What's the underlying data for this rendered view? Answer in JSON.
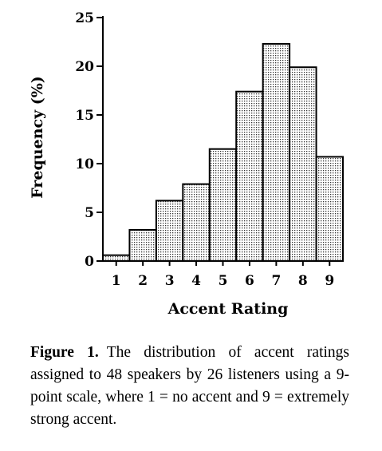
{
  "chart_data": {
    "type": "bar",
    "categories": [
      "1",
      "2",
      "3",
      "4",
      "5",
      "6",
      "7",
      "8",
      "9"
    ],
    "values": [
      0.6,
      3.2,
      6.2,
      7.9,
      11.5,
      17.4,
      22.3,
      19.9,
      10.7
    ],
    "xlabel": "Accent Rating",
    "ylabel": "Frequency (%)",
    "ylim": [
      0,
      25
    ],
    "yticks": [
      0,
      5,
      10,
      15,
      20,
      25
    ],
    "grid": false,
    "bar_pattern": "dotted"
  },
  "caption": {
    "label": "Figure 1.",
    "text": "The distribution of accent ratings assigned to 48 speakers by 26 listeners using a 9-point scale, where 1 = no accent and 9 = extremely strong accent."
  }
}
